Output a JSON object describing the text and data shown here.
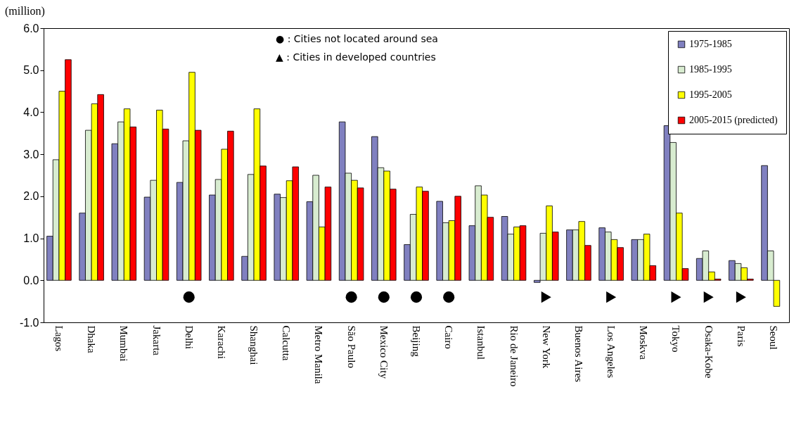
{
  "chart_data": {
    "type": "bar",
    "ylabel": "(million)",
    "categories": [
      "Lagos",
      "Dhaka",
      "Mumbai",
      "Jakarta",
      "Delhi",
      "Karachi",
      "Shanghai",
      "Calcutta",
      "Metro Manila",
      "São Paulo",
      "Mexico City",
      "Beijing",
      "Cairo",
      "Istanbul",
      "Rio de Janeiro",
      "New York",
      "Buenos Aires",
      "Los Angeles",
      "Moskva",
      "Tokyo",
      "Osaka-Kobe",
      "Paris",
      "Seoul"
    ],
    "series": [
      {
        "name": "1975-1985",
        "color": "#8080c0",
        "values": [
          1.05,
          1.6,
          3.25,
          1.98,
          2.33,
          2.03,
          0.57,
          2.05,
          1.87,
          3.77,
          3.42,
          0.85,
          1.88,
          1.3,
          1.52,
          -0.05,
          1.2,
          1.25,
          0.97,
          3.68,
          0.52,
          0.47,
          2.73
        ]
      },
      {
        "name": "1985-1995",
        "color": "#d8ecd0",
        "values": [
          2.87,
          3.57,
          3.77,
          2.38,
          3.32,
          2.4,
          2.52,
          1.97,
          2.5,
          2.55,
          2.68,
          1.57,
          1.37,
          2.25,
          1.1,
          1.12,
          1.2,
          1.15,
          0.97,
          3.28,
          0.7,
          0.4,
          0.7
        ]
      },
      {
        "name": "1995-2005",
        "color": "#ffff00",
        "values": [
          4.5,
          4.2,
          4.08,
          4.05,
          4.95,
          3.12,
          4.08,
          2.37,
          1.27,
          2.38,
          2.6,
          2.22,
          1.42,
          2.03,
          1.27,
          1.77,
          1.4,
          0.97,
          1.1,
          1.6,
          0.2,
          0.3,
          -0.62
        ]
      },
      {
        "name": "2005-2015 (predicted)",
        "color": "#ff0000",
        "values": [
          5.25,
          4.42,
          3.65,
          3.6,
          3.57,
          3.55,
          2.72,
          2.7,
          2.22,
          2.2,
          2.17,
          2.12,
          2.0,
          1.5,
          1.3,
          1.15,
          0.83,
          0.78,
          0.35,
          0.28,
          0.03,
          0.03,
          null
        ]
      },
      {
        "type": "scatter",
        "marker": "circle",
        "color": "#000000",
        "x": [
          "Delhi",
          "São Paulo",
          "Mexico City",
          "Beijing",
          "Cairo"
        ],
        "values": [
          -0.4,
          -0.4,
          -0.4,
          -0.4,
          -0.4
        ]
      },
      {
        "type": "scatter",
        "marker": "triangle",
        "color": "#000000",
        "x": [
          "New York",
          "Los Angeles",
          "Tokyo",
          "Osaka-Kobe",
          "Paris"
        ],
        "values": [
          -0.4,
          -0.4,
          -0.4,
          -0.4,
          -0.4
        ]
      }
    ],
    "ylim": [
      -1,
      6
    ],
    "yticks": [
      {
        "value": -1,
        "label": "-1.0"
      },
      {
        "value": 0,
        "label": "0.0"
      },
      {
        "value": 1,
        "label": "1.0"
      },
      {
        "value": 2,
        "label": "2.0"
      },
      {
        "value": 3,
        "label": "3.0"
      },
      {
        "value": 4,
        "label": "4.0"
      },
      {
        "value": 5,
        "label": "5.0"
      },
      {
        "value": 6,
        "label": "6.0"
      }
    ],
    "legend": "top right",
    "grid": false,
    "annotations": [
      "● : Cities not located around sea",
      "▲ : Cities in developed countries"
    ]
  }
}
